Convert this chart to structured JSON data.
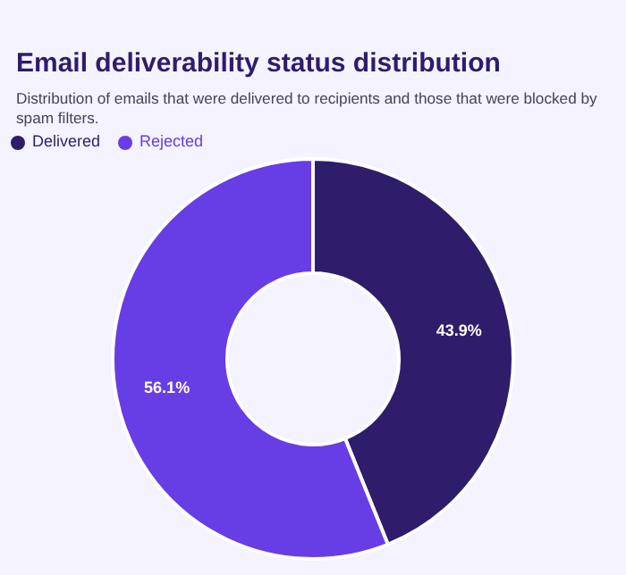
{
  "chart_data": {
    "type": "donut",
    "title": "Email deliverability status distribution",
    "subtitle": "Distribution of emails that were delivered to recipients and those that were blocked by spam filters.",
    "categories": [
      "Delivered",
      "Rejected"
    ],
    "values": [
      43.9,
      56.1
    ],
    "colors": [
      "#2f1c6a",
      "#673de6"
    ],
    "value_labels": [
      "43.9%",
      "56.1%"
    ],
    "legend": "top left"
  }
}
